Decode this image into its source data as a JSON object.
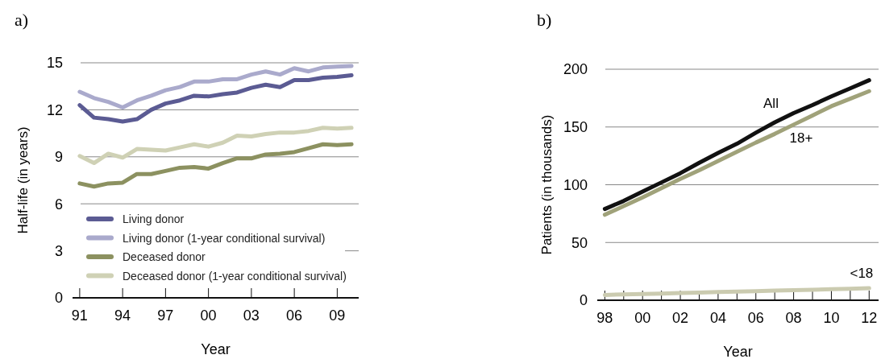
{
  "chart_data": [
    {
      "type": "line",
      "title": "a)",
      "xlabel": "Year",
      "ylabel": "Half-life (in years)",
      "x": [
        1991,
        1992,
        1993,
        1994,
        1995,
        1996,
        1997,
        1998,
        1999,
        2000,
        2001,
        2002,
        2003,
        2004,
        2005,
        2006,
        2007,
        2008,
        2009,
        2010
      ],
      "xlim": [
        1990.5,
        2010.5
      ],
      "xticks": [
        {
          "value": 1991,
          "label": "91"
        },
        {
          "value": 1994,
          "label": "94"
        },
        {
          "value": 1997,
          "label": "97"
        },
        {
          "value": 2000,
          "label": "00"
        },
        {
          "value": 2003,
          "label": "03"
        },
        {
          "value": 2006,
          "label": "06"
        },
        {
          "value": 2009,
          "label": "09"
        }
      ],
      "ylim": [
        0,
        15
      ],
      "yticks": [
        0,
        3,
        6,
        9,
        12,
        15
      ],
      "grid": "y",
      "legend": "bottom left",
      "line_style": "solid",
      "marker": "none",
      "series": [
        {
          "name": "Living donor",
          "color": "#5b5b93",
          "values": [
            12.3,
            11.5,
            11.4,
            11.25,
            11.4,
            12.0,
            12.4,
            12.6,
            12.9,
            12.85,
            13.0,
            13.1,
            13.4,
            13.6,
            13.45,
            13.9,
            13.9,
            14.05,
            14.1,
            14.2
          ]
        },
        {
          "name": "Living donor (1-year conditional survival)",
          "color": "#aaaacc",
          "values": [
            13.15,
            12.75,
            12.5,
            12.15,
            12.6,
            12.9,
            13.25,
            13.45,
            13.8,
            13.8,
            13.95,
            13.95,
            14.25,
            14.45,
            14.25,
            14.65,
            14.45,
            14.7,
            14.75,
            14.8
          ]
        },
        {
          "name": "Deceased donor",
          "color": "#8c9160",
          "values": [
            7.3,
            7.1,
            7.3,
            7.35,
            7.9,
            7.9,
            8.1,
            8.3,
            8.35,
            8.25,
            8.6,
            8.9,
            8.9,
            9.15,
            9.2,
            9.3,
            9.55,
            9.8,
            9.75,
            9.8
          ]
        },
        {
          "name": "Deceased donor (1-year conditional survival)",
          "color": "#cfd1b5",
          "values": [
            9.05,
            8.6,
            9.2,
            8.95,
            9.5,
            9.45,
            9.4,
            9.6,
            9.8,
            9.65,
            9.9,
            10.35,
            10.3,
            10.45,
            10.55,
            10.55,
            10.65,
            10.85,
            10.8,
            10.85
          ]
        }
      ]
    },
    {
      "type": "line",
      "title": "b)",
      "xlabel": "Year",
      "ylabel": "Patients (in thousands)",
      "x": [
        1998,
        1999,
        2000,
        2001,
        2002,
        2003,
        2004,
        2005,
        2006,
        2007,
        2008,
        2009,
        2010,
        2011,
        2012
      ],
      "xlim": [
        1997.6,
        2012.5
      ],
      "xticks": [
        {
          "value": 1998,
          "label": "98"
        },
        {
          "value": 1999,
          "label": null
        },
        {
          "value": 2000,
          "label": "00"
        },
        {
          "value": 2001,
          "label": null
        },
        {
          "value": 2002,
          "label": "02"
        },
        {
          "value": 2003,
          "label": null
        },
        {
          "value": 2004,
          "label": "04"
        },
        {
          "value": 2005,
          "label": null
        },
        {
          "value": 2006,
          "label": "06"
        },
        {
          "value": 2007,
          "label": null
        },
        {
          "value": 2008,
          "label": "08"
        },
        {
          "value": 2009,
          "label": null
        },
        {
          "value": 2010,
          "label": "10"
        },
        {
          "value": 2011,
          "label": null
        },
        {
          "value": 2012,
          "label": "12"
        }
      ],
      "ylim": [
        0,
        200
      ],
      "yticks": [
        0,
        50,
        100,
        150,
        200
      ],
      "grid": "y",
      "legend": false,
      "line_style": "solid",
      "marker": "none",
      "series": [
        {
          "name": "All",
          "color": "#111111",
          "values": [
            79,
            86,
            94,
            102,
            110,
            119,
            127.5,
            135.5,
            145,
            154,
            162,
            169,
            176.5,
            183.5,
            190.5
          ]
        },
        {
          "name": "18+",
          "color": "#a0a27a",
          "values": [
            74,
            81.5,
            89,
            97,
            105,
            112.5,
            120.5,
            128.5,
            136.5,
            144,
            152,
            160,
            168,
            174.5,
            181
          ]
        },
        {
          "name": "<18",
          "color": "#cbcbb0",
          "values": [
            4.6,
            5,
            5.4,
            5.8,
            6.3,
            6.7,
            7.1,
            7.5,
            7.9,
            8.3,
            8.7,
            9.1,
            9.5,
            10,
            10.4
          ]
        }
      ]
    }
  ]
}
